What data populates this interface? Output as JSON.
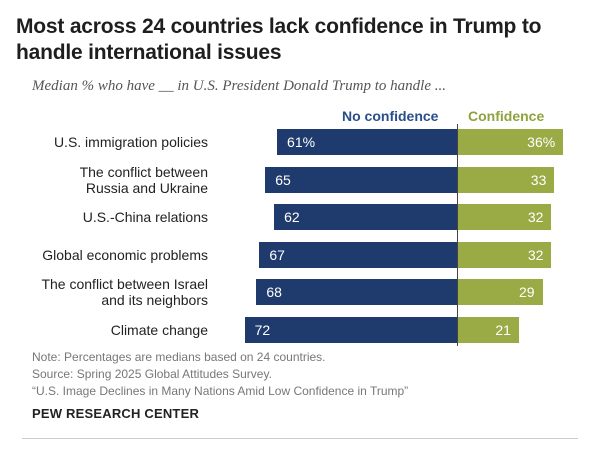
{
  "title": "Most across 24 countries lack confidence in Trump to handle international issues",
  "subtitle": "Median % who have __ in U.S. President Donald Trump to handle ...",
  "chart_data": {
    "type": "bar",
    "orientation": "diverging-horizontal",
    "categories": [
      "U.S. immigration policies",
      "The conflict between Russia and Ukraine",
      "U.S.-China relations",
      "Global economic problems",
      "The conflict between Israel and its neighbors",
      "Climate change"
    ],
    "category_lines": [
      [
        "U.S. immigration policies"
      ],
      [
        "The conflict between",
        "Russia and Ukraine"
      ],
      [
        "U.S.-China relations"
      ],
      [
        "Global economic problems"
      ],
      [
        "The conflict between Israel",
        "and its neighbors"
      ],
      [
        "Climate change"
      ]
    ],
    "series": [
      {
        "name": "No confidence",
        "color": "#1f3a6d",
        "values": [
          61,
          65,
          62,
          67,
          68,
          72
        ],
        "labels": [
          "61%",
          "65",
          "62",
          "67",
          "68",
          "72"
        ]
      },
      {
        "name": "Confidence",
        "color": "#9aaa44",
        "values": [
          36,
          33,
          32,
          32,
          29,
          21
        ],
        "labels": [
          "36%",
          "33",
          "32",
          "32",
          "29",
          "21"
        ]
      }
    ],
    "legend": [
      "No confidence",
      "Confidence"
    ],
    "unit": "%"
  },
  "notes": [
    "Note: Percentages are medians based on 24 countries.",
    "Source: Spring 2025 Global Attitudes Survey.",
    "“U.S. Image Declines in Many Nations Amid Low Confidence in Trump”"
  ],
  "brand": "PEW RESEARCH CENTER"
}
